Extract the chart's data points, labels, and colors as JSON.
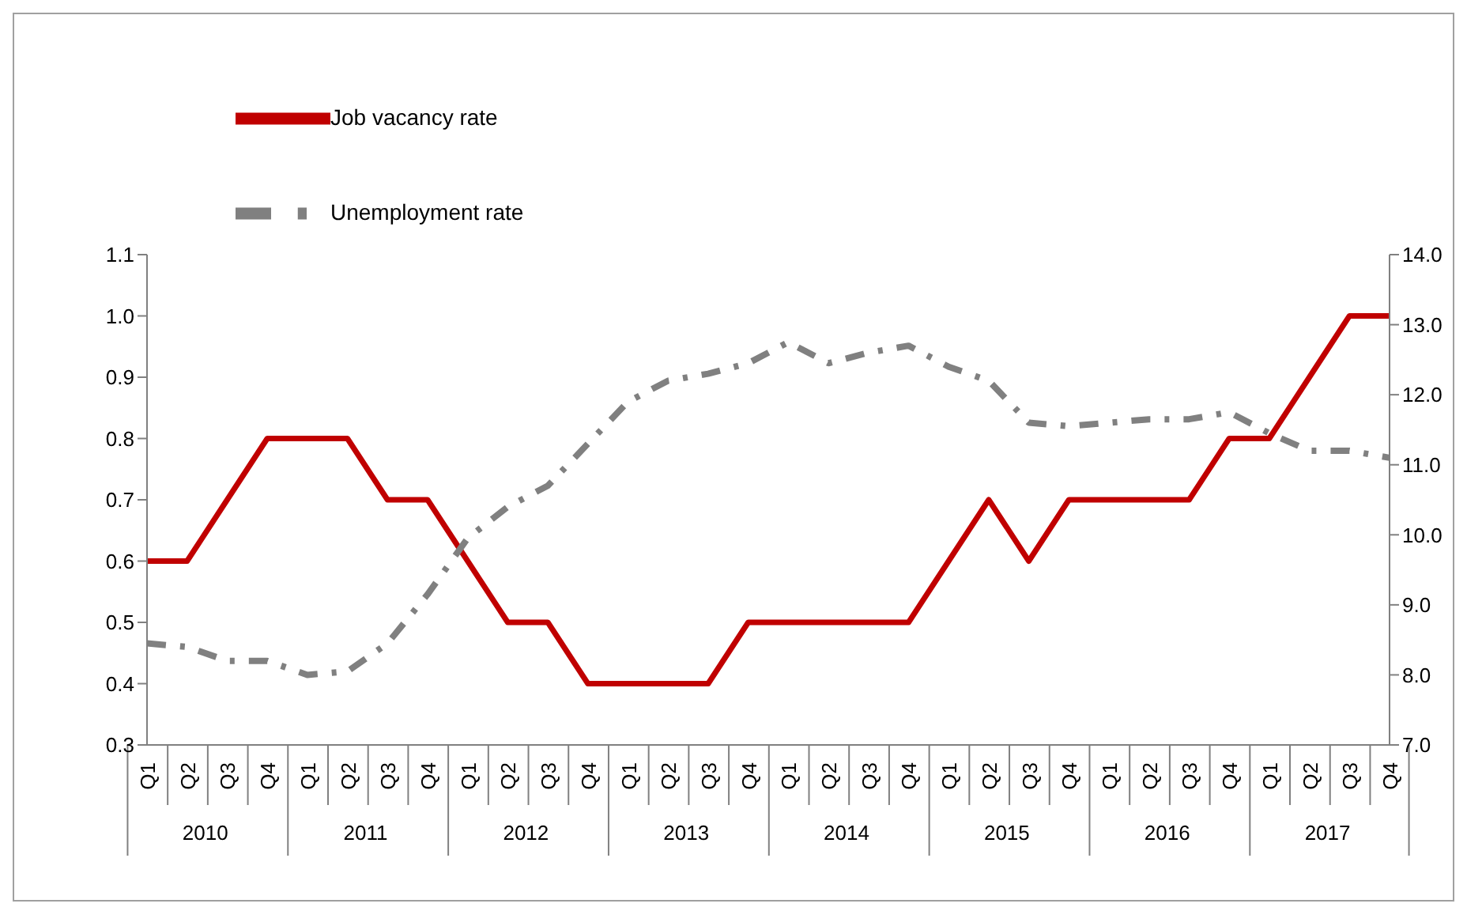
{
  "chart_data": {
    "type": "line",
    "categories": [
      "Q1",
      "Q2",
      "Q3",
      "Q4",
      "Q1",
      "Q2",
      "Q3",
      "Q4",
      "Q1",
      "Q2",
      "Q3",
      "Q4",
      "Q1",
      "Q2",
      "Q3",
      "Q4",
      "Q1",
      "Q2",
      "Q3",
      "Q4",
      "Q1",
      "Q2",
      "Q3",
      "Q4",
      "Q1",
      "Q2",
      "Q3",
      "Q4",
      "Q1",
      "Q2",
      "Q3",
      "Q4"
    ],
    "annotations": [
      "2010",
      "2011",
      "2012",
      "2013",
      "2014",
      "2015",
      "2016",
      "2017"
    ],
    "series": [
      {
        "name": "Job vacancy rate",
        "color": "#c00000",
        "line_style": "solid",
        "values": [
          0.6,
          0.6,
          0.7,
          0.8,
          0.8,
          0.8,
          0.7,
          0.7,
          0.6,
          0.5,
          0.5,
          0.4,
          0.4,
          0.4,
          0.4,
          0.5,
          0.5,
          0.5,
          0.5,
          0.5,
          0.6,
          0.7,
          0.6,
          0.7,
          0.7,
          0.7,
          0.7,
          0.8,
          0.8,
          0.9,
          1.0,
          1.0
        ]
      },
      {
        "name": "Unemployment rate",
        "color": "#808080",
        "line_style": "dashed",
        "axis": "y2",
        "values": [
          8.45,
          8.4,
          8.2,
          8.2,
          8.0,
          8.05,
          8.45,
          9.15,
          9.95,
          10.4,
          10.7,
          11.3,
          11.9,
          12.2,
          12.3,
          12.45,
          12.75,
          12.45,
          12.6,
          12.7,
          12.4,
          12.2,
          11.6,
          11.55,
          11.6,
          11.65,
          11.65,
          11.75,
          11.45,
          11.2,
          11.2,
          11.1
        ]
      }
    ],
    "ylim": [
      0.3,
      1.1
    ],
    "yticks": [
      {
        "value": 0.3,
        "label": "0.3"
      },
      {
        "value": 0.4,
        "label": "0.4"
      },
      {
        "value": 0.5,
        "label": "0.5"
      },
      {
        "value": 0.6,
        "label": "0.6"
      },
      {
        "value": 0.7,
        "label": "0.7"
      },
      {
        "value": 0.8,
        "label": "0.8"
      },
      {
        "value": 0.9,
        "label": "0.9"
      },
      {
        "value": 1.0,
        "label": "1.0"
      },
      {
        "value": 1.1,
        "label": "1.1"
      }
    ],
    "y2lim": [
      7,
      14
    ],
    "y2ticks": [
      {
        "value": 7,
        "label": "7.0"
      },
      {
        "value": 8,
        "label": "8.0"
      },
      {
        "value": 9,
        "label": "9.0"
      },
      {
        "value": 10,
        "label": "10.0"
      },
      {
        "value": 11,
        "label": "11.0"
      },
      {
        "value": 12,
        "label": "12.0"
      },
      {
        "value": 13,
        "label": "13.0"
      },
      {
        "value": 14,
        "label": "14.0"
      }
    ],
    "grid": false,
    "legend": "top left",
    "marker": "none"
  }
}
